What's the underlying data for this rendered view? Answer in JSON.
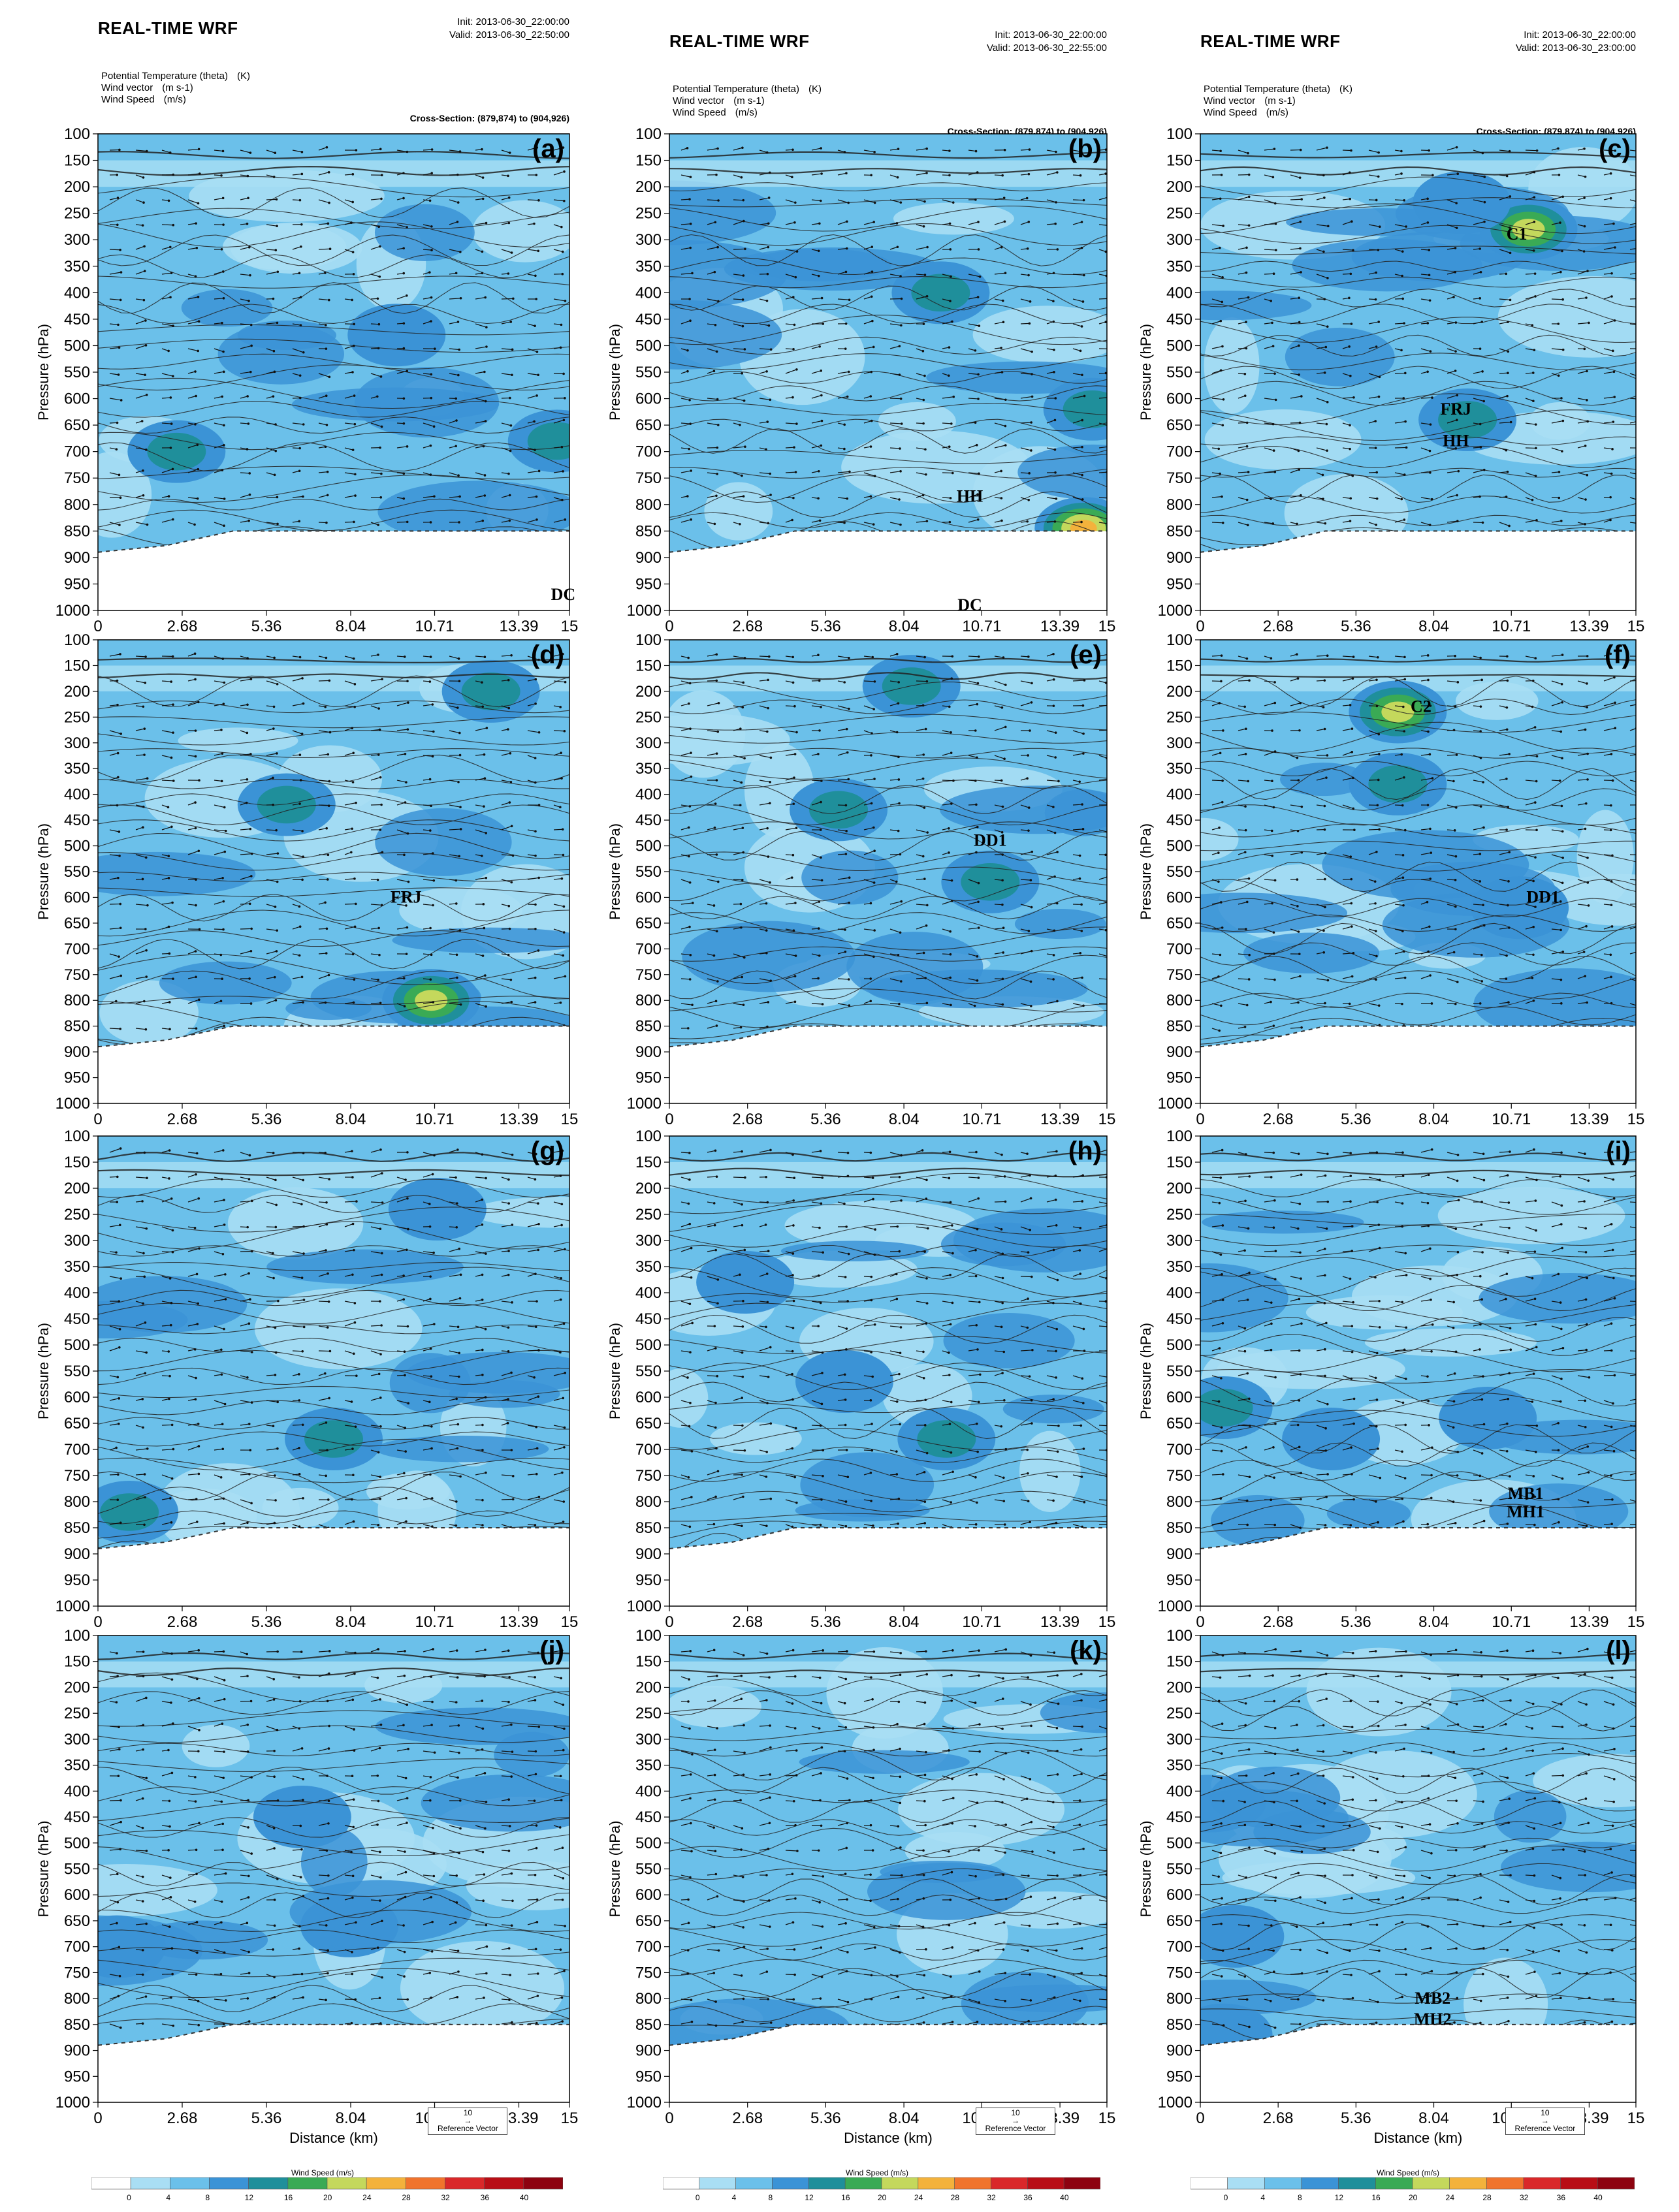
{
  "columns": [
    {
      "title": "REAL-TIME WRF",
      "init": "Init: 2013-06-30_22:00:00",
      "valid": "Valid: 2013-06-30_22:50:00",
      "fields": [
        [
          "Potential Temperature (theta)",
          "(K)"
        ],
        [
          "Wind vector",
          "(m s-1)"
        ],
        [
          "Wind Speed",
          "(m/s)"
        ]
      ],
      "cross_section": "Cross-Section: (879,874) to (904,926)"
    },
    {
      "title": "REAL-TIME WRF",
      "init": "Init: 2013-06-30_22:00:00",
      "valid": "Valid: 2013-06-30_22:55:00",
      "fields": [
        [
          "Potential Temperature (theta)",
          "(K)"
        ],
        [
          "Wind vector",
          "(m s-1)"
        ],
        [
          "Wind Speed",
          "(m/s)"
        ]
      ],
      "cross_section": "Cross-Section: (879,874) to (904,926)"
    },
    {
      "title": "REAL-TIME WRF",
      "init": "Init: 2013-06-30_22:00:00",
      "valid": "Valid: 2013-06-30_23:00:00",
      "fields": [
        [
          "Potential Temperature (theta)",
          "(K)"
        ],
        [
          "Wind vector",
          "(m s-1)"
        ],
        [
          "Wind Speed",
          "(m/s)"
        ]
      ],
      "cross_section": "Cross-Section: (879,874) to (904,926)"
    }
  ],
  "chart_data": {
    "type": "heatmap",
    "panel_type": "vertical cross-section: filled wind speed, potential temperature contours, wind vectors",
    "ylabel": "Pressure (hPa)",
    "xlabel": "Distance (km)",
    "yticks": [
      100,
      150,
      200,
      250,
      300,
      350,
      400,
      450,
      500,
      550,
      600,
      650,
      700,
      750,
      800,
      850,
      900,
      950,
      1000
    ],
    "xticks": [
      "0",
      "2.68",
      "5.36",
      "8.04",
      "10.71",
      "13.39",
      "15"
    ],
    "xlim": [
      0,
      15
    ],
    "ylim": [
      1000,
      100
    ],
    "panels": [
      {
        "label": "(a)",
        "annotations": [
          {
            "text": "DC",
            "x": 14.8,
            "p": 980
          }
        ],
        "features": [
          {
            "x": 9.5,
            "p": 480,
            "speed": 14
          },
          {
            "x": 2.5,
            "p": 700,
            "speed": 17
          },
          {
            "x": 14.6,
            "p": 680,
            "speed": 16
          }
        ]
      },
      {
        "label": "(b)",
        "annotations": [
          {
            "text": "HH",
            "x": 10.3,
            "p": 795
          },
          {
            "text": "DC",
            "x": 10.3,
            "p": 1000
          }
        ],
        "features": [
          {
            "x": 9.3,
            "p": 400,
            "speed": 16
          },
          {
            "x": 14.2,
            "p": 845,
            "speed": 28
          },
          {
            "x": 14.5,
            "p": 620,
            "speed": 16
          }
        ]
      },
      {
        "label": "(c)",
        "annotations": [
          {
            "text": "C1",
            "x": 10.9,
            "p": 300
          },
          {
            "text": "FRJ",
            "x": 8.8,
            "p": 630
          },
          {
            "text": "HH",
            "x": 8.8,
            "p": 690
          }
        ],
        "features": [
          {
            "x": 11.3,
            "p": 280,
            "speed": 24
          },
          {
            "x": 9.2,
            "p": 640,
            "speed": 17
          },
          {
            "x": 9.0,
            "p": 230,
            "speed": 15
          }
        ]
      },
      {
        "label": "(d)",
        "annotations": [
          {
            "text": "FRJ",
            "x": 9.8,
            "p": 610
          }
        ],
        "features": [
          {
            "x": 10.6,
            "p": 800,
            "speed": 24
          },
          {
            "x": 6.0,
            "p": 420,
            "speed": 17
          },
          {
            "x": 12.5,
            "p": 200,
            "speed": 17
          }
        ]
      },
      {
        "label": "(e)",
        "annotations": [
          {
            "text": "DD1",
            "x": 11.0,
            "p": 500
          }
        ],
        "features": [
          {
            "x": 8.3,
            "p": 190,
            "speed": 17
          },
          {
            "x": 5.8,
            "p": 430,
            "speed": 17
          },
          {
            "x": 11.0,
            "p": 570,
            "speed": 16
          }
        ]
      },
      {
        "label": "(f)",
        "annotations": [
          {
            "text": "C2",
            "x": 7.6,
            "p": 240
          },
          {
            "text": "DD1",
            "x": 11.8,
            "p": 610
          }
        ],
        "features": [
          {
            "x": 6.8,
            "p": 240,
            "speed": 24
          },
          {
            "x": 6.8,
            "p": 380,
            "speed": 17
          },
          {
            "x": 11.0,
            "p": 620,
            "speed": 15
          }
        ]
      },
      {
        "label": "(g)",
        "annotations": [],
        "features": [
          {
            "x": 7.5,
            "p": 680,
            "speed": 17
          },
          {
            "x": 10.8,
            "p": 240,
            "speed": 14
          },
          {
            "x": 1.0,
            "p": 820,
            "speed": 16
          }
        ]
      },
      {
        "label": "(h)",
        "annotations": [],
        "features": [
          {
            "x": 9.5,
            "p": 680,
            "speed": 16
          },
          {
            "x": 2.6,
            "p": 380,
            "speed": 14
          },
          {
            "x": 6.0,
            "p": 570,
            "speed": 13
          }
        ]
      },
      {
        "label": "(i)",
        "annotations": [
          {
            "text": "MB1",
            "x": 11.2,
            "p": 795
          },
          {
            "text": "MH1",
            "x": 11.2,
            "p": 830
          }
        ],
        "features": [
          {
            "x": 0.8,
            "p": 620,
            "speed": 16
          },
          {
            "x": 9.9,
            "p": 640,
            "speed": 15
          },
          {
            "x": 4.5,
            "p": 680,
            "speed": 14
          }
        ]
      },
      {
        "label": "(j)",
        "annotations": [],
        "features": [
          {
            "x": 6.5,
            "p": 450,
            "speed": 12
          },
          {
            "x": 0.6,
            "p": 700,
            "speed": 15
          },
          {
            "x": 8.0,
            "p": 660,
            "speed": 12
          }
        ]
      },
      {
        "label": "(k)",
        "annotations": [],
        "features": [
          {
            "x": 5.0,
            "p": 700,
            "speed": 11
          },
          {
            "x": 11.0,
            "p": 660,
            "speed": 11
          },
          {
            "x": 2.6,
            "p": 300,
            "speed": 10
          }
        ]
      },
      {
        "label": "(l)",
        "annotations": [
          {
            "text": "MB2",
            "x": 8.0,
            "p": 810
          },
          {
            "text": "MH2",
            "x": 8.0,
            "p": 850
          }
        ],
        "features": [
          {
            "x": 1.2,
            "p": 680,
            "speed": 13
          },
          {
            "x": 11.0,
            "p": 650,
            "speed": 11
          },
          {
            "x": 0.8,
            "p": 870,
            "speed": 15
          }
        ]
      }
    ],
    "colorbar": {
      "title": "Wind Speed (m/s)",
      "levels": [
        "0",
        "4",
        "8",
        "12",
        "16",
        "20",
        "24",
        "28",
        "32",
        "36",
        "40"
      ],
      "colors": [
        "#ffffff",
        "#a9def4",
        "#6bc0ea",
        "#3b93d6",
        "#1f8f9b",
        "#3aaa55",
        "#c4d85c",
        "#f3b23c",
        "#f0742d",
        "#d9282a",
        "#b80e16",
        "#8d0310"
      ]
    },
    "reference_vector": {
      "value": "10",
      "label": "Reference Vector"
    }
  }
}
